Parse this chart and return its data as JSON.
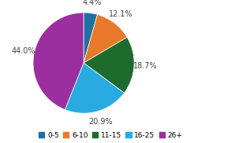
{
  "labels": [
    "0-5",
    "6-10",
    "11-15",
    "16-25",
    "26+"
  ],
  "values": [
    4.4,
    12.1,
    18.7,
    20.9,
    44.0
  ],
  "colors": [
    "#1f6fa3",
    "#e8792a",
    "#1e6b2e",
    "#29abe2",
    "#9b2fa0"
  ],
  "startangle": 90,
  "background_color": "#ffffff",
  "pct_distance": 1.22,
  "pct_fontsize": 7.0,
  "legend_fontsize": 6.5
}
